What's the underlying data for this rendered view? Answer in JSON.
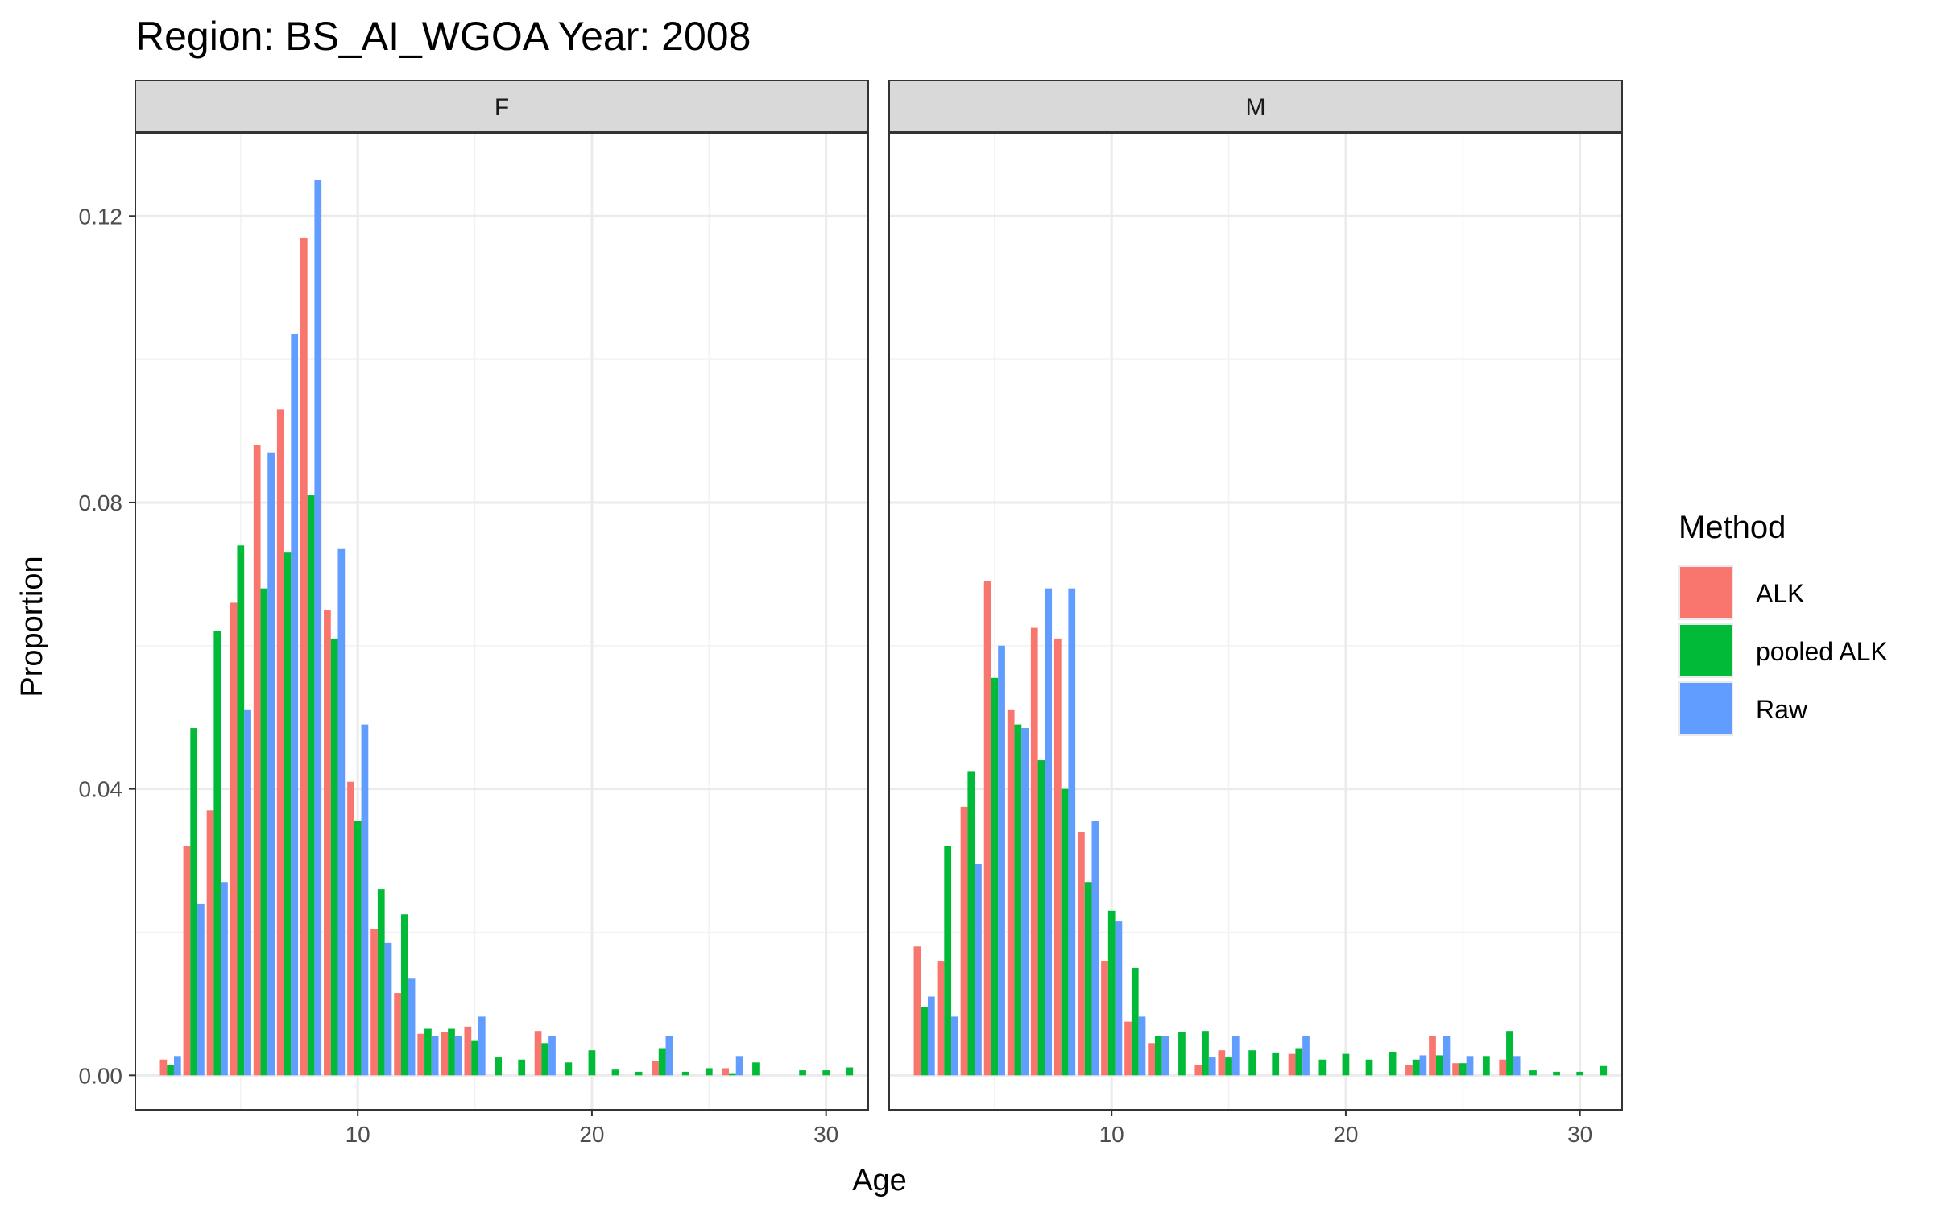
{
  "chart_data": {
    "type": "bar",
    "title": "Region: BS_AI_WGOA Year: 2008",
    "xlabel": "Age",
    "ylabel": "Proportion",
    "xlim": [
      0.5,
      31.8
    ],
    "ylim": [
      -0.0048,
      0.1315
    ],
    "x_ticks": [
      10,
      20,
      30
    ],
    "x_tick_labels": [
      "10",
      "20",
      "30"
    ],
    "y_ticks": [
      0,
      0.04,
      0.08,
      0.12
    ],
    "y_tick_labels": [
      "0.00",
      "0.04",
      "0.08",
      "0.12"
    ],
    "grid": true,
    "legend": {
      "title": "Method",
      "position": "right",
      "entries": [
        {
          "name": "ALK",
          "color": "#F8766D"
        },
        {
          "name": "pooled ALK",
          "color": "#00BA38"
        },
        {
          "name": "Raw",
          "color": "#619CFF"
        }
      ]
    },
    "panels": [
      {
        "label": "F",
        "x": [
          2,
          3,
          4,
          5,
          6,
          7,
          8,
          9,
          10,
          11,
          12,
          13,
          14,
          15,
          16,
          17,
          18,
          19,
          20,
          21,
          22,
          23,
          24,
          25,
          26,
          27,
          28,
          29,
          30,
          31
        ],
        "series": [
          {
            "name": "ALK",
            "values": [
              0.0022,
              0.032,
              0.037,
              0.066,
              0.088,
              0.093,
              0.117,
              0.065,
              0.041,
              0.0205,
              0.0115,
              0.0058,
              0.006,
              0.0068,
              0,
              0,
              0.0062,
              0,
              0,
              0,
              0,
              0.002,
              0,
              0,
              0.001,
              0,
              0,
              0,
              0,
              0
            ]
          },
          {
            "name": "pooled ALK",
            "values": [
              0.0015,
              0.0485,
              0.062,
              0.074,
              0.068,
              0.073,
              0.081,
              0.061,
              0.0355,
              0.026,
              0.0225,
              0.0065,
              0.0065,
              0.0048,
              0.0025,
              0.0022,
              0.0045,
              0.0018,
              0.0035,
              0.0008,
              0.0005,
              0.0038,
              0.0005,
              0.001,
              0.0003,
              0.0018,
              0,
              0.0007,
              0.0007,
              0.0011
            ]
          },
          {
            "name": "Raw",
            "values": [
              0.0027,
              0.024,
              0.027,
              0.051,
              0.087,
              0.1035,
              0.125,
              0.0735,
              0.049,
              0.0185,
              0.0135,
              0.0055,
              0.0055,
              0.0082,
              0,
              0,
              0.0055,
              0,
              0,
              0,
              0,
              0.0055,
              0,
              0,
              0.0027,
              0,
              0,
              0,
              0,
              0
            ]
          }
        ]
      },
      {
        "label": "M",
        "x": [
          2,
          3,
          4,
          5,
          6,
          7,
          8,
          9,
          10,
          11,
          12,
          13,
          14,
          15,
          16,
          17,
          18,
          19,
          20,
          21,
          22,
          23,
          24,
          25,
          26,
          27,
          28,
          29,
          30,
          31
        ],
        "series": [
          {
            "name": "ALK",
            "values": [
              0.018,
              0.016,
              0.0375,
              0.069,
              0.051,
              0.0625,
              0.061,
              0.034,
              0.016,
              0.0075,
              0.0045,
              0,
              0.0015,
              0.0035,
              0,
              0,
              0.003,
              0,
              0,
              0,
              0,
              0.0015,
              0.0055,
              0.0017,
              0,
              0.0022,
              0,
              0,
              0,
              0
            ]
          },
          {
            "name": "pooled ALK",
            "values": [
              0.0095,
              0.032,
              0.0425,
              0.0555,
              0.049,
              0.044,
              0.04,
              0.027,
              0.023,
              0.015,
              0.0055,
              0.006,
              0.0062,
              0.0025,
              0.0035,
              0.0032,
              0.0038,
              0.0022,
              0.003,
              0.0022,
              0.0033,
              0.0022,
              0.0028,
              0.0017,
              0.0027,
              0.0062,
              0.0007,
              0.0005,
              0.0005,
              0.0013
            ]
          },
          {
            "name": "Raw",
            "values": [
              0.011,
              0.0082,
              0.0295,
              0.06,
              0.0485,
              0.068,
              0.068,
              0.0355,
              0.0215,
              0.0082,
              0.0055,
              0,
              0.0025,
              0.0055,
              0,
              0,
              0.0055,
              0,
              0,
              0,
              0,
              0.0028,
              0.0055,
              0.0027,
              0,
              0.0027,
              0,
              0,
              0,
              0
            ]
          }
        ]
      }
    ]
  }
}
